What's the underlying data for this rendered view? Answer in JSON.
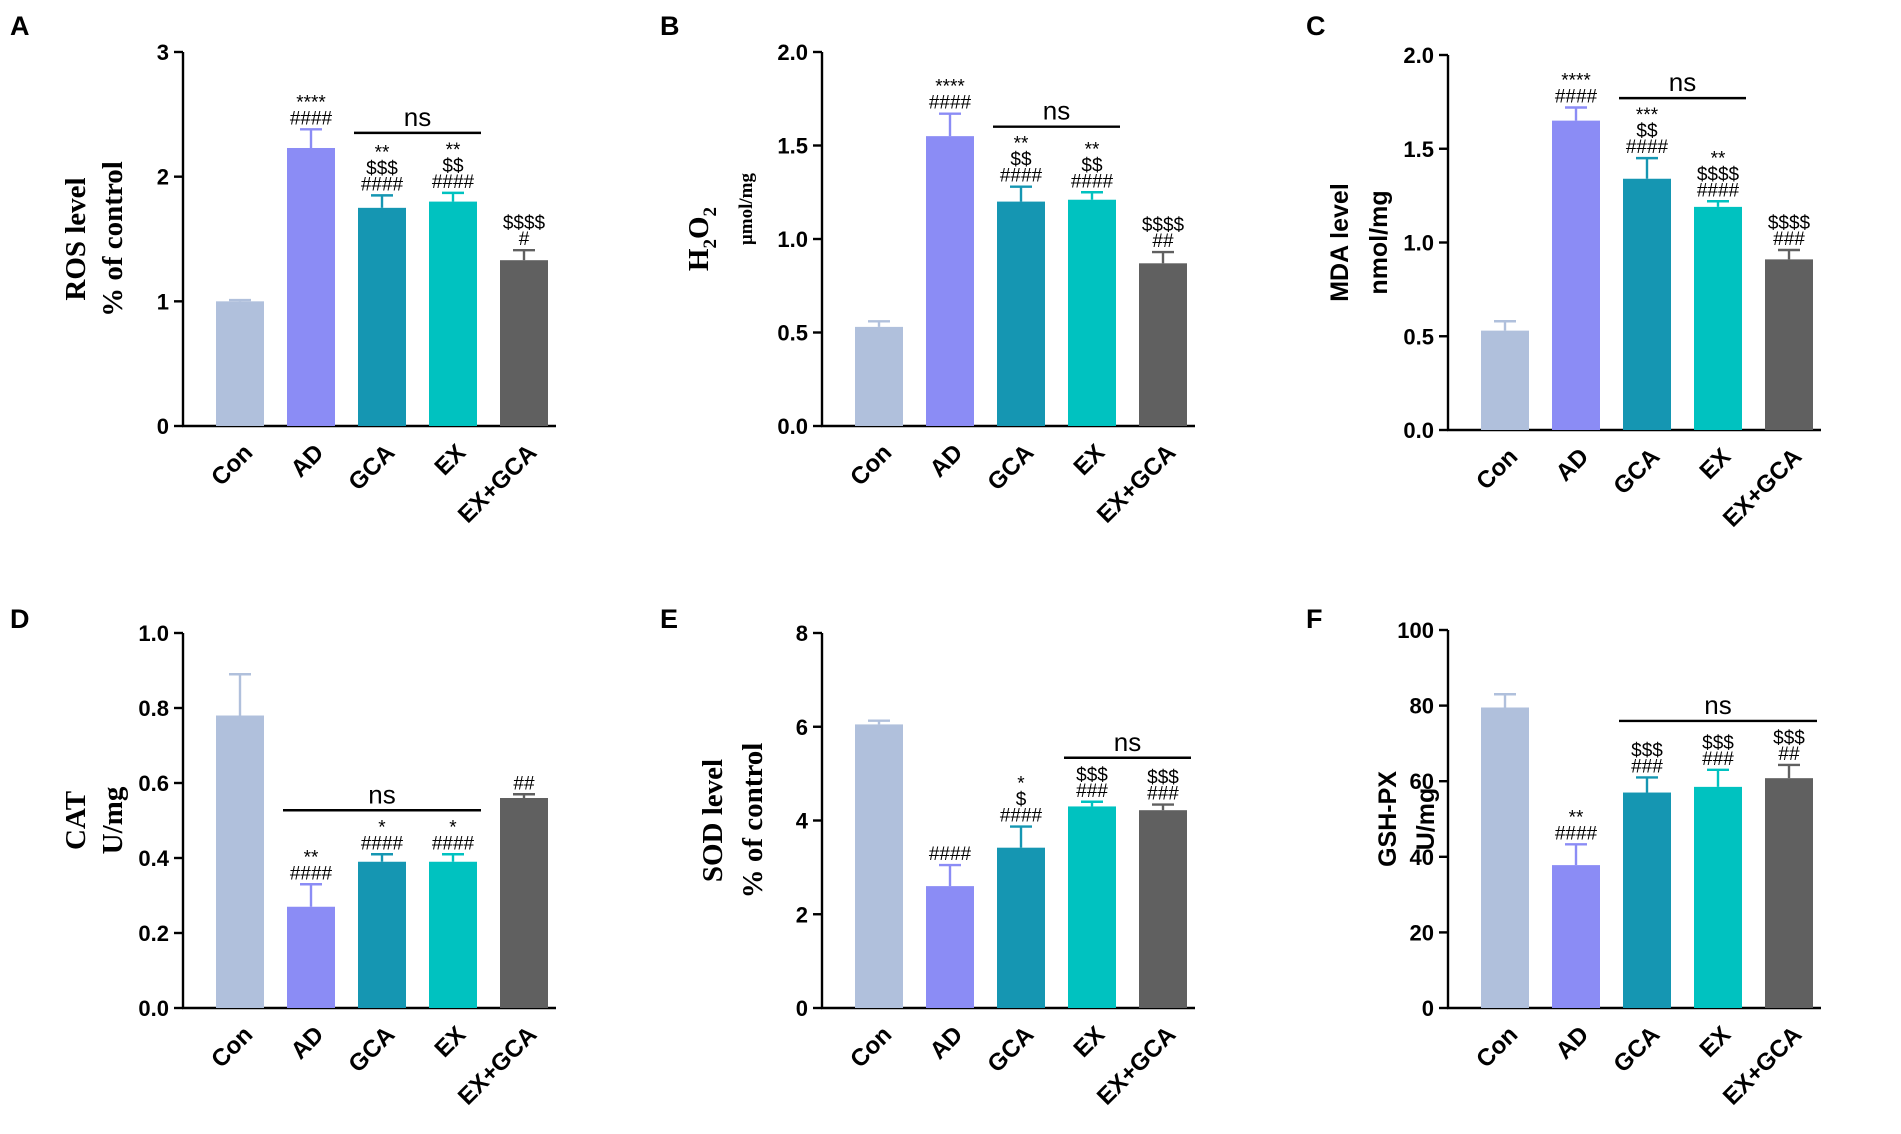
{
  "colors": {
    "Con": "#b0c0dc",
    "AD": "#8b8cf5",
    "GCA": "#1596b2",
    "EX": "#00c2c0",
    "EX+GCA": "#606060"
  },
  "chart_data": [
    {
      "panel": "A",
      "type": "bar",
      "ylabel": "ROS level",
      "ylabel2": "% of control",
      "ylabel_font": "serif",
      "ylim": [
        0,
        3
      ],
      "yticks": [
        "0",
        "1",
        "2",
        "3"
      ],
      "categories": [
        "Con",
        "AD",
        "GCA",
        "EX",
        "EX+GCA"
      ],
      "values": [
        1.0,
        2.23,
        1.75,
        1.8,
        1.33
      ],
      "errors": [
        0.01,
        0.15,
        0.1,
        0.07,
        0.08
      ],
      "significance": [
        [],
        [
          "****",
          "####"
        ],
        [
          "**",
          "$$$",
          "####"
        ],
        [
          "**",
          "$$",
          "####"
        ],
        [
          "$$$$",
          "#"
        ]
      ],
      "ns": {
        "text": "ns",
        "from": 2,
        "to": 3
      }
    },
    {
      "panel": "B",
      "type": "bar",
      "ylabel": "H2O2",
      "ylabel_base": "H",
      "ylabel_sub1": "2",
      "ylabel_mid": "O",
      "ylabel_sub2": "2",
      "ylabel2": "μmol/mg",
      "ylabel_font": "serif",
      "ylim": [
        0,
        2
      ],
      "yticks": [
        "0.0",
        "0.5",
        "1.0",
        "1.5",
        "2.0"
      ],
      "categories": [
        "Con",
        "AD",
        "GCA",
        "EX",
        "EX+GCA"
      ],
      "values": [
        0.53,
        1.55,
        1.2,
        1.21,
        0.87
      ],
      "errors": [
        0.03,
        0.12,
        0.08,
        0.04,
        0.06
      ],
      "significance": [
        [],
        [
          "****",
          "####"
        ],
        [
          "**",
          "$$",
          "####"
        ],
        [
          "**",
          "$$",
          "####"
        ],
        [
          "$$$$",
          "##"
        ]
      ],
      "ns": {
        "text": "ns",
        "from": 2,
        "to": 3
      }
    },
    {
      "panel": "C",
      "type": "bar",
      "ylabel": "MDA level",
      "ylabel2": "nmol/mg",
      "ylabel_font": "sans",
      "ylim": [
        0,
        2
      ],
      "yticks": [
        "0.0",
        "0.5",
        "1.0",
        "1.5",
        "2.0"
      ],
      "categories": [
        "Con",
        "AD",
        "GCA",
        "EX",
        "EX+GCA"
      ],
      "values": [
        0.53,
        1.65,
        1.34,
        1.19,
        0.91
      ],
      "errors": [
        0.05,
        0.07,
        0.11,
        0.03,
        0.05
      ],
      "significance": [
        [],
        [
          "****",
          "####"
        ],
        [
          "***",
          "$$",
          "####"
        ],
        [
          "**",
          "$$$$",
          "####"
        ],
        [
          "$$$$",
          "###"
        ]
      ],
      "ns": {
        "text": "ns",
        "from": 2,
        "to": 3
      }
    },
    {
      "panel": "D",
      "type": "bar",
      "ylabel": "CAT",
      "ylabel2": "U/mg",
      "ylabel_font": "serif",
      "ylim": [
        0,
        1
      ],
      "yticks": [
        "0.0",
        "0.2",
        "0.4",
        "0.6",
        "0.8",
        "1.0"
      ],
      "categories": [
        "Con",
        "AD",
        "GCA",
        "EX",
        "EX+GCA"
      ],
      "values": [
        0.78,
        0.27,
        0.39,
        0.39,
        0.56
      ],
      "errors": [
        0.11,
        0.06,
        0.02,
        0.02,
        0.01
      ],
      "significance": [
        [],
        [
          "**",
          "####"
        ],
        [
          "*",
          "####"
        ],
        [
          "*",
          "####"
        ],
        [
          "##"
        ]
      ],
      "ns": {
        "text": "ns",
        "from": 1,
        "to": 3
      }
    },
    {
      "panel": "E",
      "type": "bar",
      "ylabel": "SOD level",
      "ylabel2": "% of control",
      "ylabel_font": "serif",
      "ylim": [
        0,
        8
      ],
      "yticks": [
        "0",
        "2",
        "4",
        "6",
        "8"
      ],
      "categories": [
        "Con",
        "AD",
        "GCA",
        "EX",
        "EX+GCA"
      ],
      "values": [
        6.05,
        2.6,
        3.42,
        4.3,
        4.22
      ],
      "errors": [
        0.08,
        0.45,
        0.45,
        0.1,
        0.12
      ],
      "significance": [
        [],
        [
          "####"
        ],
        [
          "*",
          "$",
          "####"
        ],
        [
          "$$$",
          "###"
        ],
        [
          "$$$",
          "###"
        ]
      ],
      "ns": {
        "text": "ns",
        "from": 3,
        "to": 4
      }
    },
    {
      "panel": "F",
      "type": "bar",
      "ylabel": "GSH-PX",
      "ylabel2": "U/mg",
      "ylabel_font": "sans",
      "ylim": [
        0,
        100
      ],
      "yticks": [
        "0",
        "20",
        "40",
        "60",
        "80",
        "100"
      ],
      "categories": [
        "Con",
        "AD",
        "GCA",
        "EX",
        "EX+GCA"
      ],
      "values": [
        79.5,
        37.8,
        57.0,
        58.5,
        60.8
      ],
      "errors": [
        3.5,
        5.5,
        4.0,
        4.5,
        3.5
      ],
      "significance": [
        [],
        [
          "**",
          "####"
        ],
        [
          "$$$",
          "###"
        ],
        [
          "$$$",
          "###"
        ],
        [
          "$$$",
          "##"
        ]
      ],
      "ns": {
        "text": "ns",
        "from": 2,
        "to": 4
      }
    }
  ]
}
